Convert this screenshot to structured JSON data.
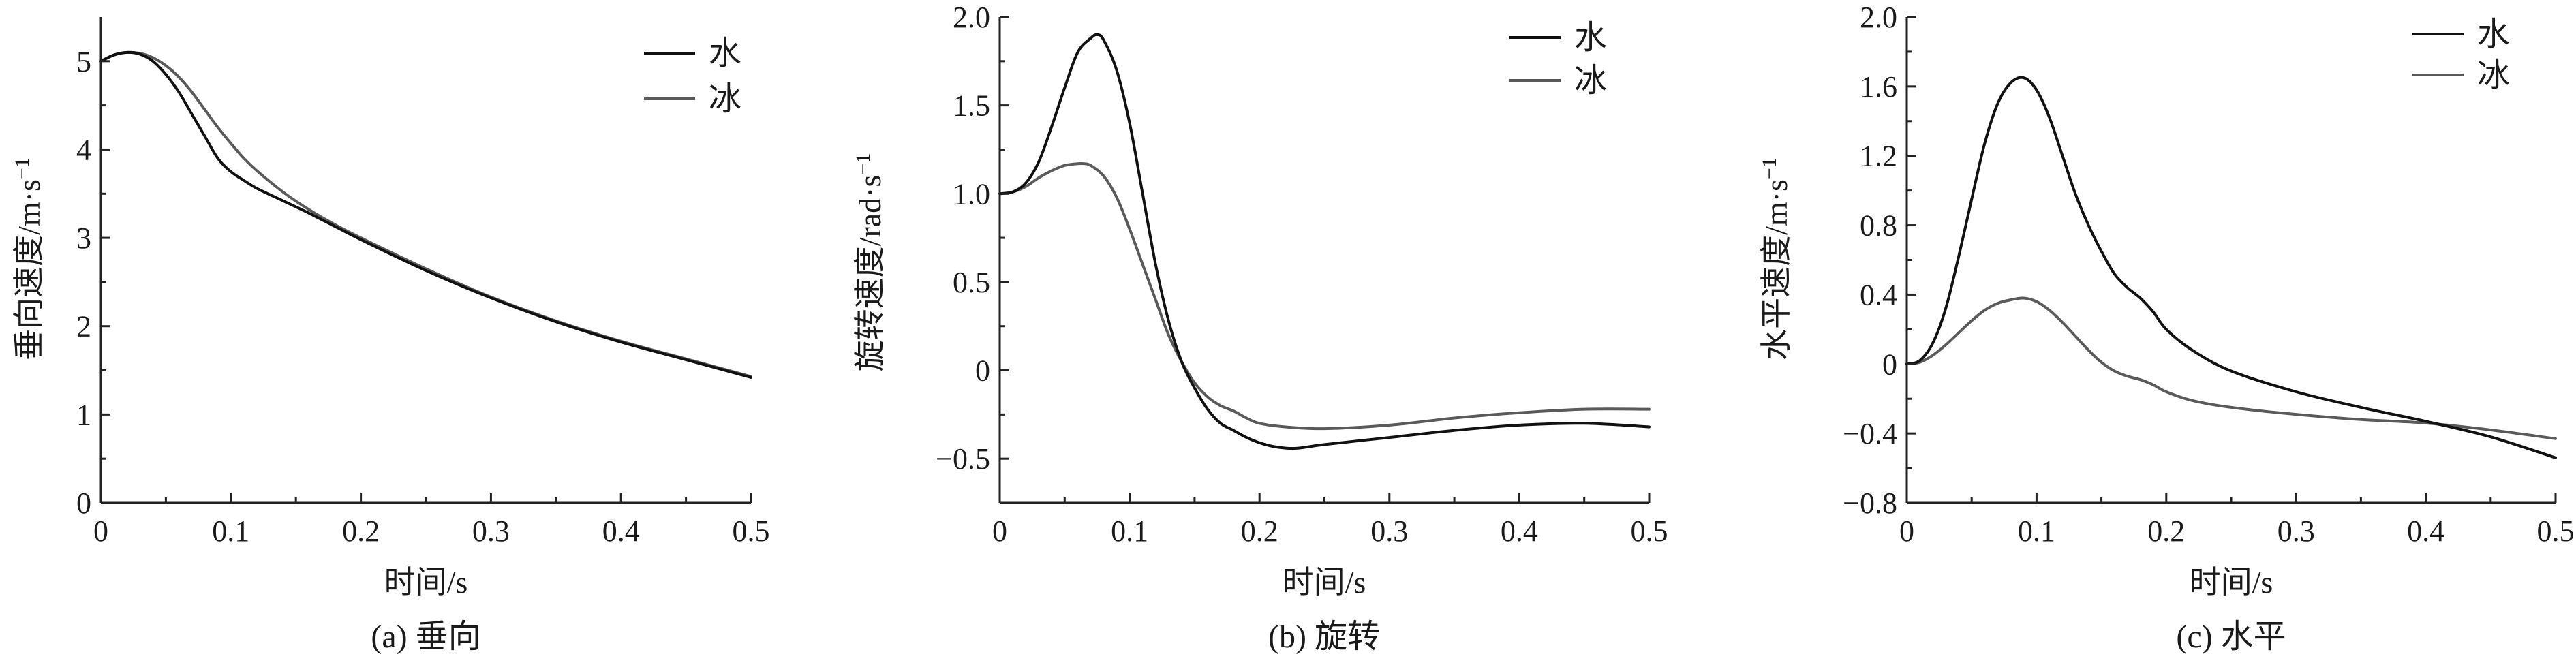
{
  "chart_data": [
    {
      "type": "line",
      "caption": "(a) 垂向",
      "xlabel": "时间/s",
      "ylabel": "垂向速度/m·s",
      "ylabel_sup": "−1",
      "xlim": [
        0,
        0.5
      ],
      "ylim": [
        0,
        5.5
      ],
      "xticks": [
        0,
        0.1,
        0.2,
        0.3,
        0.4,
        0.5
      ],
      "xtick_labels": [
        "0",
        "0.1",
        "0.2",
        "0.3",
        "0.4",
        "0.5"
      ],
      "yticks": [
        0,
        1,
        2,
        3,
        4,
        5
      ],
      "ytick_labels": [
        "0",
        "1",
        "2",
        "3",
        "4",
        "5"
      ],
      "legend_position": "top-right",
      "series": [
        {
          "name": "水",
          "color": "#111111",
          "x": [
            0,
            0.01,
            0.02,
            0.03,
            0.04,
            0.05,
            0.06,
            0.07,
            0.08,
            0.09,
            0.1,
            0.11,
            0.12,
            0.14,
            0.16,
            0.18,
            0.2,
            0.25,
            0.3,
            0.35,
            0.4,
            0.45,
            0.5
          ],
          "y": [
            5.0,
            5.07,
            5.1,
            5.08,
            5.0,
            4.85,
            4.65,
            4.4,
            4.15,
            3.9,
            3.75,
            3.65,
            3.56,
            3.42,
            3.28,
            3.13,
            2.98,
            2.63,
            2.32,
            2.05,
            1.82,
            1.62,
            1.42
          ]
        },
        {
          "name": "冰",
          "color": "#5a5a5a",
          "x": [
            0,
            0.01,
            0.02,
            0.03,
            0.04,
            0.05,
            0.06,
            0.07,
            0.08,
            0.09,
            0.1,
            0.11,
            0.12,
            0.14,
            0.16,
            0.18,
            0.2,
            0.25,
            0.3,
            0.35,
            0.4,
            0.45,
            0.5
          ],
          "y": [
            5.0,
            5.07,
            5.1,
            5.09,
            5.04,
            4.95,
            4.82,
            4.65,
            4.45,
            4.25,
            4.07,
            3.9,
            3.76,
            3.52,
            3.32,
            3.15,
            3.0,
            2.65,
            2.33,
            2.06,
            1.83,
            1.63,
            1.43
          ]
        }
      ]
    },
    {
      "type": "line",
      "caption": "(b) 旋转",
      "xlabel": "时间/s",
      "ylabel": "旋转速度/rad·s",
      "ylabel_sup": "−1",
      "xlim": [
        0,
        0.5
      ],
      "ylim": [
        -0.75,
        2.0
      ],
      "xticks": [
        0,
        0.1,
        0.2,
        0.3,
        0.4,
        0.5
      ],
      "xtick_labels": [
        "0",
        "0.1",
        "0.2",
        "0.3",
        "0.4",
        "0.5"
      ],
      "yticks": [
        -0.5,
        0,
        0.5,
        1.0,
        1.5,
        2.0
      ],
      "ytick_labels": [
        "−0.5",
        "0",
        "0.5",
        "1.0",
        "1.5",
        "2.0"
      ],
      "legend_position": "top-right",
      "series": [
        {
          "name": "水",
          "color": "#111111",
          "x": [
            0,
            0.01,
            0.02,
            0.03,
            0.04,
            0.05,
            0.06,
            0.07,
            0.075,
            0.08,
            0.09,
            0.1,
            0.11,
            0.12,
            0.13,
            0.14,
            0.15,
            0.16,
            0.17,
            0.18,
            0.19,
            0.2,
            0.21,
            0.22,
            0.23,
            0.25,
            0.3,
            0.35,
            0.4,
            0.45,
            0.5
          ],
          "y": [
            1.0,
            1.01,
            1.06,
            1.18,
            1.38,
            1.6,
            1.8,
            1.88,
            1.9,
            1.87,
            1.7,
            1.4,
            1.0,
            0.6,
            0.28,
            0.05,
            -0.1,
            -0.22,
            -0.3,
            -0.34,
            -0.38,
            -0.41,
            -0.43,
            -0.44,
            -0.44,
            -0.42,
            -0.38,
            -0.34,
            -0.31,
            -0.3,
            -0.32
          ]
        },
        {
          "name": "冰",
          "color": "#5a5a5a",
          "x": [
            0,
            0.01,
            0.02,
            0.03,
            0.04,
            0.05,
            0.06,
            0.065,
            0.07,
            0.08,
            0.09,
            0.1,
            0.11,
            0.12,
            0.13,
            0.14,
            0.15,
            0.16,
            0.17,
            0.18,
            0.19,
            0.2,
            0.22,
            0.25,
            0.3,
            0.35,
            0.4,
            0.45,
            0.5
          ],
          "y": [
            1.0,
            1.01,
            1.04,
            1.09,
            1.13,
            1.16,
            1.17,
            1.17,
            1.16,
            1.1,
            0.98,
            0.8,
            0.6,
            0.4,
            0.2,
            0.05,
            -0.07,
            -0.15,
            -0.2,
            -0.23,
            -0.27,
            -0.3,
            -0.32,
            -0.33,
            -0.31,
            -0.27,
            -0.24,
            -0.22,
            -0.22
          ]
        }
      ]
    },
    {
      "type": "line",
      "caption": "(c) 水平",
      "xlabel": "时间/s",
      "ylabel": "水平速度/m·s",
      "ylabel_sup": "−1",
      "xlim": [
        0,
        0.5
      ],
      "ylim": [
        -0.8,
        2.0
      ],
      "xticks": [
        0,
        0.1,
        0.2,
        0.3,
        0.4,
        0.5
      ],
      "xtick_labels": [
        "0",
        "0.1",
        "0.2",
        "0.3",
        "0.4",
        "0.5"
      ],
      "yticks": [
        -0.8,
        -0.4,
        0,
        0.4,
        0.8,
        1.2,
        1.6,
        2.0
      ],
      "ytick_labels": [
        "−0.8",
        "−0.4",
        "0",
        "0.4",
        "0.8",
        "1.2",
        "1.6",
        "2.0"
      ],
      "legend_position": "top-right",
      "series": [
        {
          "name": "水",
          "color": "#111111",
          "x": [
            0,
            0.01,
            0.02,
            0.03,
            0.04,
            0.05,
            0.06,
            0.07,
            0.08,
            0.09,
            0.1,
            0.11,
            0.12,
            0.13,
            0.14,
            0.15,
            0.16,
            0.17,
            0.18,
            0.19,
            0.2,
            0.22,
            0.25,
            0.3,
            0.35,
            0.4,
            0.45,
            0.5
          ],
          "y": [
            0,
            0.02,
            0.12,
            0.32,
            0.62,
            0.95,
            1.27,
            1.5,
            1.62,
            1.65,
            1.58,
            1.42,
            1.2,
            0.98,
            0.8,
            0.65,
            0.52,
            0.44,
            0.38,
            0.3,
            0.2,
            0.08,
            -0.04,
            -0.16,
            -0.25,
            -0.33,
            -0.42,
            -0.54
          ]
        },
        {
          "name": "冰",
          "color": "#5a5a5a",
          "x": [
            0,
            0.01,
            0.02,
            0.03,
            0.04,
            0.05,
            0.06,
            0.07,
            0.08,
            0.09,
            0.1,
            0.11,
            0.12,
            0.13,
            0.14,
            0.15,
            0.16,
            0.17,
            0.18,
            0.19,
            0.2,
            0.22,
            0.25,
            0.3,
            0.35,
            0.4,
            0.45,
            0.5
          ],
          "y": [
            0,
            0.01,
            0.05,
            0.11,
            0.18,
            0.25,
            0.31,
            0.35,
            0.37,
            0.38,
            0.36,
            0.31,
            0.24,
            0.16,
            0.08,
            0.01,
            -0.04,
            -0.07,
            -0.09,
            -0.12,
            -0.16,
            -0.21,
            -0.25,
            -0.29,
            -0.32,
            -0.34,
            -0.38,
            -0.43
          ]
        }
      ]
    }
  ]
}
